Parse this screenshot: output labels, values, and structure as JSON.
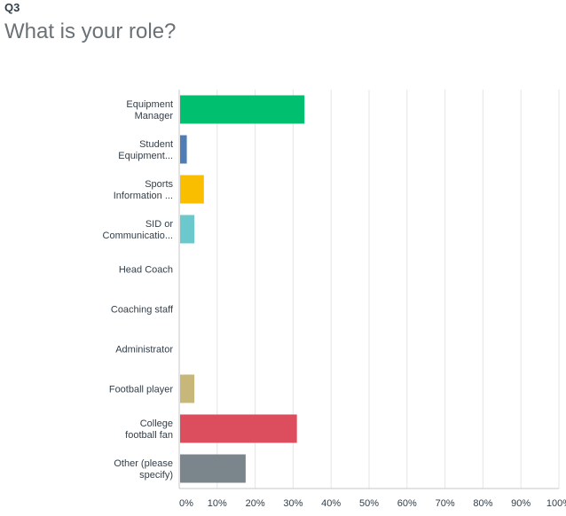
{
  "question": {
    "number": "Q3",
    "title": "What is your role?"
  },
  "chart_data": {
    "type": "bar",
    "orientation": "horizontal",
    "categories": [
      [
        "Equipment",
        "Manager"
      ],
      [
        "Student",
        "Equipment..."
      ],
      [
        "Sports",
        "Information ..."
      ],
      [
        "SID or",
        "Communicatio..."
      ],
      [
        "Head Coach"
      ],
      [
        "Coaching staff"
      ],
      [
        "Administrator"
      ],
      [
        "Football player"
      ],
      [
        "College",
        "football fan"
      ],
      [
        "Other (please",
        "specify)"
      ]
    ],
    "values": [
      33,
      2,
      6.5,
      4,
      0,
      0,
      0,
      4,
      31,
      17.5
    ],
    "colors": [
      "#00bf6f",
      "#507cb6",
      "#f9be00",
      "#6bc8cd",
      "#ff8b4f",
      "#7d5e90",
      "#d25f90",
      "#c7b879",
      "#dc4e5d",
      "#7b868c"
    ],
    "xlim": [
      0,
      100
    ],
    "xticks": [
      0,
      10,
      20,
      30,
      40,
      50,
      60,
      70,
      80,
      90,
      100
    ],
    "xtick_labels": [
      "0%",
      "10%",
      "20%",
      "30%",
      "40%",
      "50%",
      "60%",
      "70%",
      "80%",
      "90%",
      "100%"
    ],
    "grid": true
  }
}
